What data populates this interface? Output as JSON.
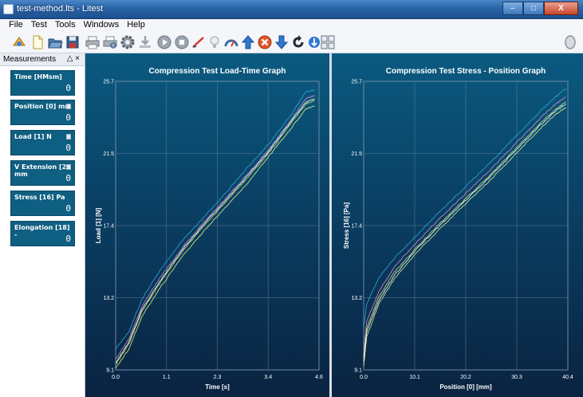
{
  "window": {
    "title": "test-method.lts - Litest",
    "controls": [
      "–",
      "□",
      "X"
    ]
  },
  "menu": [
    "File",
    "Test",
    "Tools",
    "Windows",
    "Help"
  ],
  "toolbar": {
    "icons": [
      "wizard-icon",
      "new-icon",
      "open-icon",
      "save-icon",
      "print-icon",
      "print-preview-icon",
      "settings-icon",
      "export-icon",
      "play-icon",
      "stop-icon",
      "calibrate-icon",
      "lightbulb-icon",
      "gauge-icon",
      "up-arrow-icon",
      "stop-x-icon",
      "down-arrow-icon",
      "return-icon",
      "small-down-arrow-icon",
      "layout-grid-icon",
      "circle-status-icon"
    ]
  },
  "panel": {
    "title": "Measurements",
    "controls": "△ ×",
    "cards": [
      {
        "label": "Time [HMsm]",
        "value": "0",
        "has_checkbox": false
      },
      {
        "label": "Position [0] mm",
        "value": "0",
        "has_checkbox": true
      },
      {
        "label": "Load [1] N",
        "value": "0",
        "has_checkbox": true
      },
      {
        "label": "V Extension [2] mm",
        "value": "0",
        "has_checkbox": true
      },
      {
        "label": "Stress [16] Pa",
        "value": "0",
        "has_checkbox": false
      },
      {
        "label": "Elongation [18] -",
        "value": "0",
        "has_checkbox": false
      }
    ]
  },
  "chart_data": [
    {
      "type": "line",
      "title": "Compression Test Load-Time Graph",
      "xlabel": "Time [s]",
      "ylabel": "Load [1] [N]",
      "xlim": [
        0,
        4.6
      ],
      "ylim": [
        9.1,
        25.7
      ],
      "xticks": [
        "0.0",
        "1.1",
        "2.3",
        "3.4",
        "4.6"
      ],
      "yticks": [
        "9.1",
        "13.2",
        "17.4",
        "21.5",
        "25.7"
      ],
      "grid": true,
      "series": [
        {
          "color": "#2aa8d8",
          "x": [
            0,
            0.3,
            0.6,
            1.0,
            1.5,
            2.0,
            2.5,
            3.0,
            3.5,
            4.0,
            4.3,
            4.5
          ],
          "y": [
            10.3,
            11.3,
            13.2,
            14.8,
            16.5,
            17.9,
            19.3,
            20.8,
            22.2,
            23.9,
            25.1,
            25.2
          ]
        },
        {
          "color": "#c9e36a",
          "x": [
            0,
            0.3,
            0.6,
            1.0,
            1.5,
            2.0,
            2.5,
            3.0,
            3.5,
            4.0,
            4.3,
            4.5
          ],
          "y": [
            9.4,
            10.6,
            12.5,
            14.1,
            15.9,
            17.4,
            18.8,
            20.2,
            21.7,
            23.4,
            24.4,
            24.6
          ]
        },
        {
          "color": "#e3ec8a",
          "x": [
            0,
            0.3,
            0.6,
            1.0,
            1.5,
            2.0,
            2.5,
            3.0,
            3.5,
            4.0,
            4.3,
            4.5
          ],
          "y": [
            9.2,
            10.3,
            12.2,
            13.8,
            15.6,
            17.1,
            18.5,
            19.9,
            21.5,
            23.1,
            24.1,
            24.3
          ]
        },
        {
          "color": "#d58ad0",
          "x": [
            0,
            0.3,
            0.6,
            1.0,
            1.5,
            2.0,
            2.5,
            3.0,
            3.5,
            4.0,
            4.3,
            4.5
          ],
          "y": [
            9.7,
            10.9,
            12.8,
            14.4,
            16.1,
            17.6,
            19.0,
            20.4,
            21.9,
            23.6,
            24.7,
            24.9
          ]
        },
        {
          "color": "#ffffff",
          "x": [
            0,
            0.3,
            0.6,
            1.0,
            1.5,
            2.0,
            2.5,
            3.0,
            3.5,
            4.0,
            4.3,
            4.5
          ],
          "y": [
            9.5,
            10.7,
            12.6,
            14.2,
            16.0,
            17.5,
            18.9,
            20.3,
            21.8,
            23.5,
            24.5,
            24.7
          ]
        }
      ]
    },
    {
      "type": "line",
      "title": "Compression Test Stress - Position Graph",
      "xlabel": "Position [0] [mm]",
      "ylabel": "Stress [16] [Pa]",
      "xlim": [
        0,
        40.4
      ],
      "ylim": [
        9.1,
        25.7
      ],
      "xticks": [
        "0.0",
        "10.1",
        "20.2",
        "30.3",
        "40.4"
      ],
      "yticks": [
        "9.1",
        "13.2",
        "17.4",
        "21.5",
        "25.7"
      ],
      "grid": true,
      "series": [
        {
          "color": "#2aa8d8",
          "x": [
            0,
            0.6,
            3,
            6,
            10,
            15,
            20,
            25,
            30,
            35,
            38,
            40
          ],
          "y": [
            11.5,
            12.9,
            14.4,
            15.5,
            16.7,
            18.2,
            19.6,
            21.0,
            22.5,
            24.0,
            24.8,
            25.3
          ]
        },
        {
          "color": "#c9e36a",
          "x": [
            0,
            0.6,
            3,
            6,
            10,
            15,
            20,
            25,
            30,
            35,
            38,
            40
          ],
          "y": [
            9.8,
            11.5,
            13.3,
            14.7,
            16.0,
            17.5,
            18.9,
            20.3,
            21.8,
            23.3,
            24.1,
            24.5
          ]
        },
        {
          "color": "#e3ec8a",
          "x": [
            0,
            0.6,
            3,
            6,
            10,
            15,
            20,
            25,
            30,
            35,
            38,
            40
          ],
          "y": [
            9.3,
            11.0,
            12.9,
            14.3,
            15.7,
            17.2,
            18.6,
            20.0,
            21.5,
            23.0,
            23.8,
            24.2
          ]
        },
        {
          "color": "#d58ad0",
          "x": [
            0,
            0.6,
            3,
            6,
            10,
            15,
            20,
            25,
            30,
            35,
            38,
            40
          ],
          "y": [
            10.2,
            11.9,
            13.6,
            15.0,
            16.3,
            17.8,
            19.2,
            20.6,
            22.1,
            23.6,
            24.4,
            24.8
          ]
        },
        {
          "color": "#ffffff",
          "x": [
            0,
            0.6,
            3,
            6,
            10,
            15,
            20,
            25,
            30,
            35,
            38,
            40
          ],
          "y": [
            9.6,
            11.3,
            13.1,
            14.5,
            15.9,
            17.4,
            18.8,
            20.2,
            21.7,
            23.2,
            24.0,
            24.4
          ]
        }
      ]
    }
  ]
}
